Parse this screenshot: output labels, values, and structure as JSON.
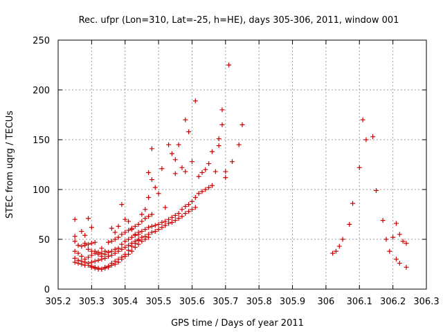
{
  "chart_data": {
    "type": "scatter",
    "title": "Rec. ufpr (Lon=310, Lat=-25, h=HE), days 305-306, 2011, window 001",
    "xlabel": "GPS time / Days of year 2011",
    "ylabel": "STEC from uqrg / TECUs",
    "xlim": [
      305.2,
      306.3
    ],
    "ylim": [
      0,
      250
    ],
    "xticks": [
      305.2,
      305.3,
      305.4,
      305.5,
      305.6,
      305.7,
      305.8,
      305.9,
      306,
      306.1,
      306.2,
      306.3
    ],
    "xtick_labels": [
      "305.2",
      "305.3",
      "305.4",
      "305.5",
      "305.6",
      "305.7",
      "305.8",
      "305.9",
      "306",
      "306.1",
      "306.2",
      "306.3"
    ],
    "yticks": [
      0,
      50,
      100,
      150,
      200,
      250
    ],
    "ytick_labels": [
      "0",
      "50",
      "100",
      "150",
      "200",
      "250"
    ],
    "grid": true,
    "marker": "+",
    "color": "#cc0000",
    "series": [
      {
        "name": "STEC",
        "points": [
          [
            305.25,
            70
          ],
          [
            305.27,
            58
          ],
          [
            305.29,
            71
          ],
          [
            305.3,
            62
          ],
          [
            305.28,
            54
          ],
          [
            305.25,
            53
          ],
          [
            305.25,
            48
          ],
          [
            305.26,
            44
          ],
          [
            305.27,
            43
          ],
          [
            305.28,
            46
          ],
          [
            305.29,
            40
          ],
          [
            305.3,
            38
          ],
          [
            305.31,
            47
          ],
          [
            305.33,
            41
          ],
          [
            305.35,
            37
          ],
          [
            305.36,
            61
          ],
          [
            305.37,
            57
          ],
          [
            305.38,
            63
          ],
          [
            305.39,
            85
          ],
          [
            305.4,
            70
          ],
          [
            305.41,
            68
          ],
          [
            305.42,
            60
          ],
          [
            305.43,
            55
          ],
          [
            305.44,
            57
          ],
          [
            305.45,
            75
          ],
          [
            305.46,
            80
          ],
          [
            305.47,
            92
          ],
          [
            305.47,
            117
          ],
          [
            305.48,
            110
          ],
          [
            305.48,
            141
          ],
          [
            305.49,
            102
          ],
          [
            305.5,
            96
          ],
          [
            305.51,
            121
          ],
          [
            305.52,
            82
          ],
          [
            305.53,
            145
          ],
          [
            305.54,
            136
          ],
          [
            305.55,
            130
          ],
          [
            305.55,
            116
          ],
          [
            305.56,
            145
          ],
          [
            305.57,
            122
          ],
          [
            305.58,
            170
          ],
          [
            305.58,
            118
          ],
          [
            305.59,
            158
          ],
          [
            305.6,
            128
          ],
          [
            305.61,
            189
          ],
          [
            305.62,
            113
          ],
          [
            305.63,
            117
          ],
          [
            305.64,
            120
          ],
          [
            305.65,
            126
          ],
          [
            305.66,
            138
          ],
          [
            305.67,
            118
          ],
          [
            305.68,
            144
          ],
          [
            305.68,
            151
          ],
          [
            305.69,
            165
          ],
          [
            305.69,
            180
          ],
          [
            305.7,
            112
          ],
          [
            305.7,
            118
          ],
          [
            305.71,
            225
          ],
          [
            305.72,
            128
          ],
          [
            305.74,
            145
          ],
          [
            305.75,
            165
          ],
          [
            305.25,
            38
          ],
          [
            305.26,
            36
          ],
          [
            305.27,
            33
          ],
          [
            305.28,
            30
          ],
          [
            305.29,
            32
          ],
          [
            305.3,
            34
          ],
          [
            305.31,
            36
          ],
          [
            305.32,
            37
          ],
          [
            305.33,
            36
          ],
          [
            305.34,
            38
          ],
          [
            305.35,
            37
          ],
          [
            305.36,
            38
          ],
          [
            305.37,
            40
          ],
          [
            305.38,
            41
          ],
          [
            305.39,
            45
          ],
          [
            305.4,
            48
          ],
          [
            305.41,
            50
          ],
          [
            305.42,
            52
          ],
          [
            305.43,
            54
          ],
          [
            305.44,
            55
          ],
          [
            305.45,
            58
          ],
          [
            305.46,
            60
          ],
          [
            305.47,
            62
          ],
          [
            305.48,
            63
          ],
          [
            305.49,
            64
          ],
          [
            305.5,
            65
          ],
          [
            305.51,
            67
          ],
          [
            305.52,
            68
          ],
          [
            305.53,
            70
          ],
          [
            305.54,
            72
          ],
          [
            305.55,
            74
          ],
          [
            305.56,
            76
          ],
          [
            305.57,
            80
          ],
          [
            305.58,
            83
          ],
          [
            305.59,
            85
          ],
          [
            305.6,
            88
          ],
          [
            305.61,
            92
          ],
          [
            305.62,
            96
          ],
          [
            305.63,
            98
          ],
          [
            305.64,
            100
          ],
          [
            305.65,
            102
          ],
          [
            305.66,
            104
          ],
          [
            305.25,
            31
          ],
          [
            305.26,
            29
          ],
          [
            305.27,
            28
          ],
          [
            305.28,
            27
          ],
          [
            305.29,
            26
          ],
          [
            305.3,
            27
          ],
          [
            305.31,
            28
          ],
          [
            305.32,
            29
          ],
          [
            305.33,
            30
          ],
          [
            305.34,
            31
          ],
          [
            305.35,
            33
          ],
          [
            305.36,
            34
          ],
          [
            305.37,
            36
          ],
          [
            305.38,
            38
          ],
          [
            305.39,
            40
          ],
          [
            305.4,
            42
          ],
          [
            305.41,
            44
          ],
          [
            305.42,
            46
          ],
          [
            305.43,
            48
          ],
          [
            305.44,
            50
          ],
          [
            305.45,
            52
          ],
          [
            305.46,
            53
          ],
          [
            305.47,
            55
          ],
          [
            305.48,
            57
          ],
          [
            305.49,
            58
          ],
          [
            305.5,
            60
          ],
          [
            305.51,
            62
          ],
          [
            305.52,
            64
          ],
          [
            305.53,
            66
          ],
          [
            305.54,
            67
          ],
          [
            305.55,
            69
          ],
          [
            305.56,
            71
          ],
          [
            305.57,
            73
          ],
          [
            305.58,
            76
          ],
          [
            305.59,
            78
          ],
          [
            305.6,
            80
          ],
          [
            305.61,
            82
          ],
          [
            305.25,
            27
          ],
          [
            305.26,
            26
          ],
          [
            305.27,
            25
          ],
          [
            305.28,
            24
          ],
          [
            305.29,
            24
          ],
          [
            305.3,
            23
          ],
          [
            305.31,
            22
          ],
          [
            305.32,
            21
          ],
          [
            305.33,
            20
          ],
          [
            305.34,
            21
          ],
          [
            305.35,
            22
          ],
          [
            305.36,
            24
          ],
          [
            305.37,
            25
          ],
          [
            305.38,
            27
          ],
          [
            305.39,
            30
          ],
          [
            305.4,
            33
          ],
          [
            305.41,
            35
          ],
          [
            305.42,
            38
          ],
          [
            305.43,
            42
          ],
          [
            305.44,
            45
          ],
          [
            305.45,
            48
          ],
          [
            305.46,
            50
          ],
          [
            305.47,
            52
          ],
          [
            305.3,
            22
          ],
          [
            305.31,
            21
          ],
          [
            305.32,
            20
          ],
          [
            305.33,
            20
          ],
          [
            305.34,
            22
          ],
          [
            305.35,
            23
          ],
          [
            305.36,
            26
          ],
          [
            305.37,
            28
          ],
          [
            305.38,
            30
          ],
          [
            305.39,
            32
          ],
          [
            305.4,
            35
          ],
          [
            305.41,
            39
          ],
          [
            305.42,
            43
          ],
          [
            305.43,
            46
          ],
          [
            305.44,
            49
          ],
          [
            305.28,
            44
          ],
          [
            305.29,
            45
          ],
          [
            305.3,
            46
          ],
          [
            305.31,
            38
          ],
          [
            305.32,
            35
          ],
          [
            305.33,
            33
          ],
          [
            305.34,
            35
          ],
          [
            305.35,
            47
          ],
          [
            305.36,
            48
          ],
          [
            305.37,
            50
          ],
          [
            305.38,
            52
          ],
          [
            305.39,
            55
          ],
          [
            305.4,
            57
          ],
          [
            305.41,
            59
          ],
          [
            305.42,
            61
          ],
          [
            305.43,
            63
          ],
          [
            305.44,
            65
          ],
          [
            305.45,
            68
          ],
          [
            305.46,
            71
          ],
          [
            305.47,
            73
          ],
          [
            305.48,
            75
          ],
          [
            306.02,
            36
          ],
          [
            306.03,
            38
          ],
          [
            306.04,
            43
          ],
          [
            306.05,
            50
          ],
          [
            306.07,
            65
          ],
          [
            306.08,
            86
          ],
          [
            306.1,
            122
          ],
          [
            306.11,
            170
          ],
          [
            306.12,
            150
          ],
          [
            306.14,
            153
          ],
          [
            306.15,
            99
          ],
          [
            306.17,
            69
          ],
          [
            306.18,
            50
          ],
          [
            306.19,
            38
          ],
          [
            306.21,
            66
          ],
          [
            306.22,
            55
          ],
          [
            306.23,
            48
          ],
          [
            306.24,
            46
          ],
          [
            306.2,
            52
          ],
          [
            306.21,
            30
          ],
          [
            306.22,
            26
          ],
          [
            306.24,
            22
          ]
        ]
      }
    ]
  }
}
